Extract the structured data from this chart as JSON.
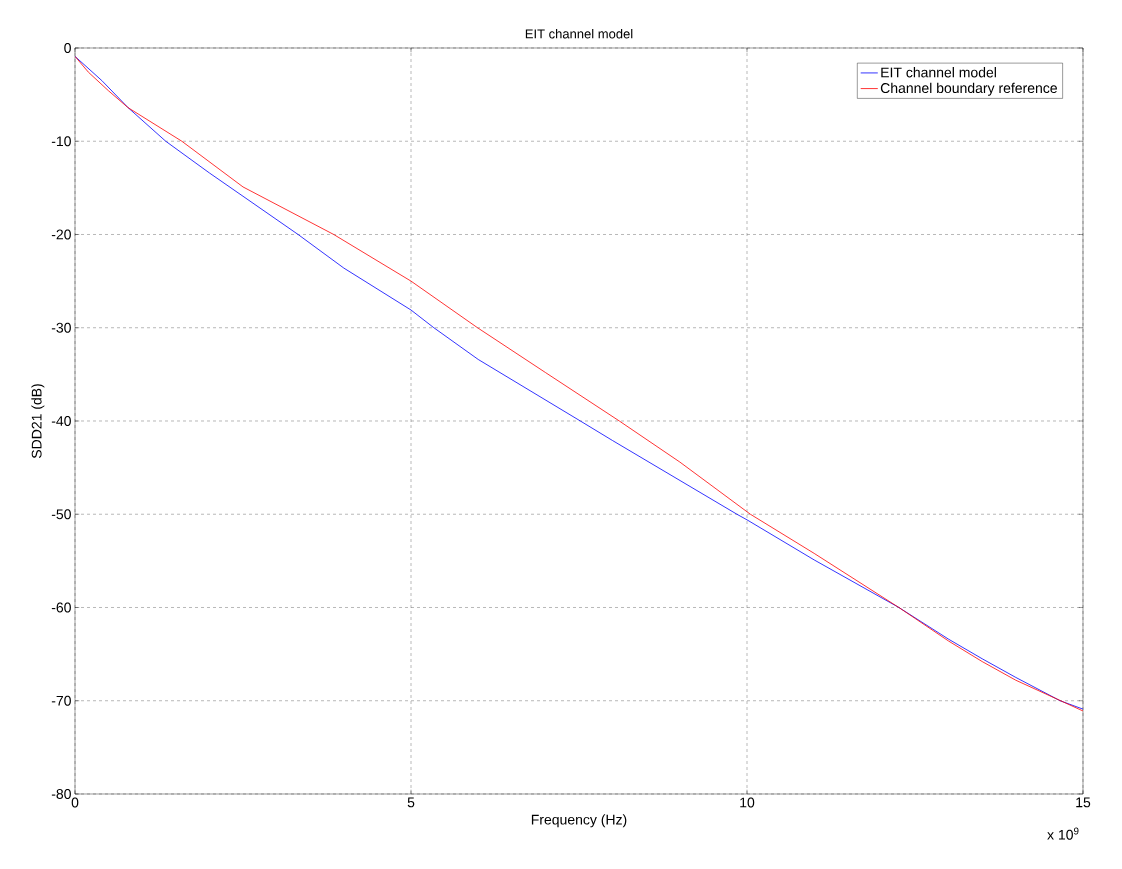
{
  "chart_data": {
    "type": "line",
    "title": "EIT channel model",
    "xlabel": "Frequency (Hz)",
    "ylabel": "SDD21 (dB)",
    "annotations": [
      "x 10$^{9}$"
    ],
    "xlim": [
      0,
      15
    ],
    "xticks": [
      0,
      5,
      10,
      15
    ],
    "ylim": [
      -80,
      0
    ],
    "yticks": [
      -80,
      -70,
      -60,
      -50,
      -40,
      -30,
      -20,
      -10,
      0
    ],
    "grid": true,
    "legend": "top right",
    "line_style": "solid",
    "marker": "none",
    "series": [
      {
        "name": "EIT channel model",
        "color": "#0000ff",
        "x": [
          0,
          0.4,
          0.79,
          1.35,
          2,
          3.32,
          4,
          5,
          5.34,
          6,
          7.52,
          8,
          9.85,
          10,
          11,
          12.26,
          13,
          13.5,
          14,
          14.66,
          15
        ],
        "values": [
          -0.9,
          -3.5,
          -6.4,
          -10,
          -13.4,
          -20,
          -23.6,
          -28.1,
          -30,
          -33.4,
          -40,
          -42.1,
          -50,
          -50.6,
          -54.9,
          -60,
          -63.4,
          -65.5,
          -67.5,
          -70,
          -70.9
        ]
      },
      {
        "name": "Channel boundary reference",
        "color": "#ff0000",
        "x": [
          0,
          0.2,
          0.5,
          0.79,
          1.59,
          2.5,
          3.85,
          5,
          5.99,
          7,
          8.1,
          9,
          10.05,
          11,
          12.26,
          13,
          13.5,
          14,
          15
        ],
        "values": [
          -0.9,
          -2.6,
          -4.6,
          -6.4,
          -10,
          -14.9,
          -20,
          -25,
          -30,
          -34.8,
          -40,
          -44.4,
          -50,
          -54.2,
          -60,
          -63.6,
          -65.8,
          -67.8,
          -71.1
        ]
      }
    ]
  }
}
